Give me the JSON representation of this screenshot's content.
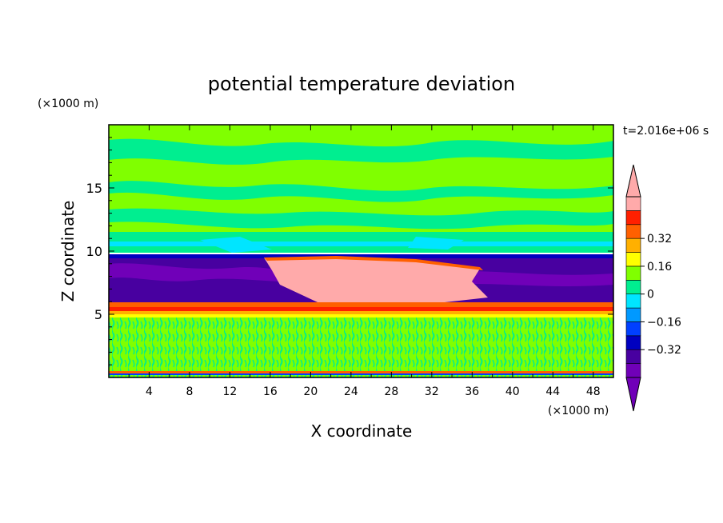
{
  "chart_data": {
    "type": "heatmap",
    "title": "potential temperature deviation",
    "xlabel": "X coordinate",
    "ylabel": "Z coordinate",
    "x_unit": "(×1000 m)",
    "y_unit": "(×1000 m)",
    "time_label": "t=2.016e+06 s",
    "xlim": [
      0,
      50
    ],
    "ylim": [
      0,
      20
    ],
    "x_ticks": [
      4,
      8,
      12,
      16,
      20,
      24,
      28,
      32,
      36,
      40,
      44,
      48
    ],
    "x_tick_labels": [
      "4",
      "8",
      "12",
      "16",
      "20",
      "24",
      "28",
      "32",
      "36",
      "40",
      "44",
      "48"
    ],
    "y_ticks": [
      5,
      10,
      15
    ],
    "y_tick_labels": [
      "5",
      "10",
      "15"
    ],
    "colorbar": {
      "levels": [
        -0.48,
        -0.4,
        -0.32,
        -0.24,
        -0.16,
        -0.08,
        0,
        0.08,
        0.16,
        0.24,
        0.32,
        0.4,
        0.48
      ],
      "labeled_levels": [
        0.32,
        0.16,
        0,
        -0.16,
        -0.32
      ],
      "labels": [
        "0.32",
        "0.16",
        "0",
        "−0.16",
        "−0.32"
      ],
      "colors": [
        "#7000b8",
        "#4800a0",
        "#0000c0",
        "#0040ff",
        "#0099ff",
        "#00e5ff",
        "#00ee90",
        "#80ff00",
        "#ffff00",
        "#ffb000",
        "#ff6000",
        "#ff2000",
        "#ffaaaa"
      ],
      "extend": "both"
    },
    "regions": [
      {
        "name": "upper-layer",
        "z_range": [
          9.8,
          20
        ],
        "dominant_value": 0.04,
        "description": "mixed near-zero deviations, green"
      },
      {
        "name": "cold-band",
        "z_range": [
          4.8,
          9.5
        ],
        "dominant_value": -0.44,
        "description": "negative deviation band, purple"
      },
      {
        "name": "warm-anomaly",
        "x_range": [
          15,
          38
        ],
        "z_range": [
          5.8,
          9.5
        ],
        "dominant_value": 0.5,
        "description": "positive anomaly above 0.48, pink"
      },
      {
        "name": "stable-layer",
        "z_range": [
          5,
          5.7
        ],
        "dominant_value": 0.32,
        "description": "thin warm layer, red/orange"
      },
      {
        "name": "lower-layer",
        "z_range": [
          0.3,
          4.8
        ],
        "dominant_value": 0.04,
        "description": "fine-scale near-zero deviations, green"
      }
    ]
  }
}
